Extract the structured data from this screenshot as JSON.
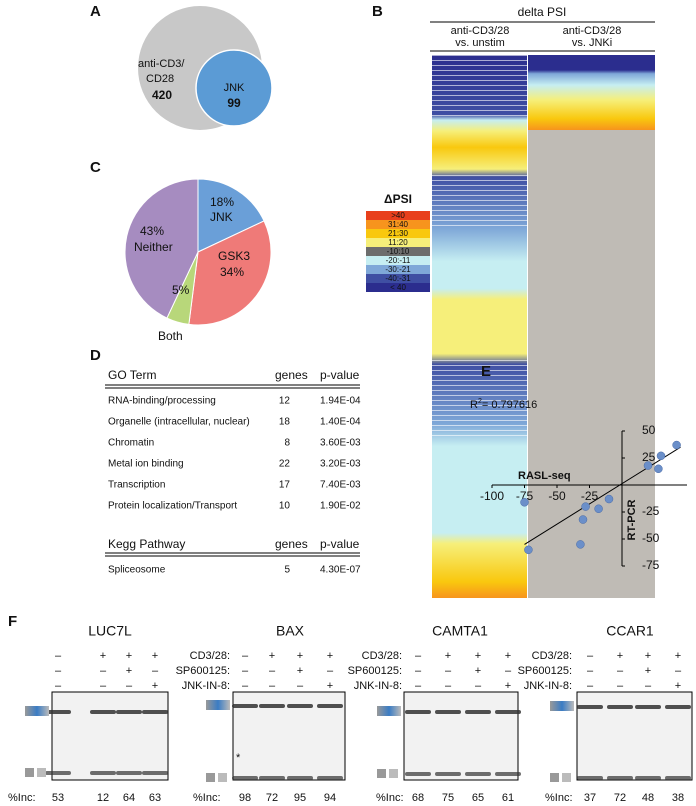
{
  "A": {
    "label": "A",
    "outer": [
      "anti-CD3/",
      "CD28"
    ],
    "outer_count": 420,
    "inner": "JNK",
    "inner_count": 99
  },
  "B": {
    "label": "B",
    "title": "delta PSI",
    "columns": [
      [
        "anti-CD3/28",
        "vs. unstim"
      ],
      [
        "anti-CD3/28",
        "vs. JNKi"
      ]
    ],
    "legend_title": "ΔPSI",
    "legend": [
      {
        "label": ">40",
        "color": "#e8401c"
      },
      {
        "label": "31:40",
        "color": "#f7941d"
      },
      {
        "label": "21:30",
        "color": "#f9c80e"
      },
      {
        "label": "11:20",
        "color": "#f6ef7a"
      },
      {
        "label": "-10:10",
        "color": "#6d6d6d"
      },
      {
        "label": "-20:-11",
        "color": "#c6eef2"
      },
      {
        "label": "-30:-21",
        "color": "#7fa8d8"
      },
      {
        "label": "-40:-31",
        "color": "#3f4fa3"
      },
      {
        "label": "< 40",
        "color": "#2b2d8e"
      }
    ]
  },
  "C": {
    "label": "C",
    "chart_data": {
      "type": "pie",
      "categories": [
        "JNK",
        "GSK3",
        "Both",
        "Neither"
      ],
      "values": [
        18,
        34,
        5,
        43
      ],
      "value_labels": [
        "18%",
        "34%",
        "5%",
        "43%"
      ],
      "colors": [
        "#6a9fd8",
        "#ef7a78",
        "#b8d77a",
        "#a68cc0"
      ]
    }
  },
  "D": {
    "label": "D",
    "go": {
      "header": [
        "GO Term",
        "genes",
        "p-value"
      ],
      "rows": [
        [
          "RNA-binding/processing",
          12,
          "1.94E-04"
        ],
        [
          "Organelle (intracellular, nuclear)",
          18,
          "1.40E-04"
        ],
        [
          "Chromatin",
          8,
          "3.60E-03"
        ],
        [
          "Metal ion binding",
          22,
          "3.20E-03"
        ],
        [
          "Transcription",
          17,
          "7.40E-03"
        ],
        [
          "Protein localization/Transport",
          10,
          "1.90E-02"
        ]
      ]
    },
    "kegg": {
      "header": [
        "Kegg Pathway",
        "genes",
        "p-value"
      ],
      "rows": [
        [
          "Spliceosome",
          5,
          "4.30E-07"
        ]
      ]
    }
  },
  "E": {
    "label": "E",
    "chart_data": {
      "type": "scatter",
      "annotation": [
        "R",
        "2",
        "= 0.797616"
      ],
      "xlabel": "RASL-seq",
      "ylabel": "RT-PCR",
      "x": [
        42,
        30,
        20,
        28,
        -18,
        -30,
        -28,
        -75,
        -72,
        -32,
        -10
      ],
      "y": [
        37,
        27,
        18,
        15,
        -22,
        -32,
        -20,
        -16,
        -60,
        -55,
        -13
      ],
      "color": "#6b8fc9",
      "xlim": [
        -100,
        50
      ],
      "ylim": [
        -75,
        50
      ],
      "xticks": [
        -100,
        -75,
        -50,
        -25
      ],
      "yticks": [
        -75,
        -50,
        -25,
        25,
        50
      ]
    }
  },
  "F": {
    "label": "F",
    "gels": [
      {
        "title": "LUC7L",
        "rows": [
          {
            "signs": [
              "–",
              "+",
              "+",
              "+"
            ]
          },
          {
            "signs": [
              "–",
              "–",
              "+",
              "–"
            ]
          },
          {
            "signs": [
              "–",
              "–",
              "–",
              "+"
            ]
          }
        ],
        "inc_label": "%Inc:",
        "inc": [
          53,
          12,
          64,
          63
        ]
      },
      {
        "title": "BAX",
        "rows": [
          {
            "label": "CD3/28:",
            "signs": [
              "–",
              "+",
              "+",
              "+"
            ]
          },
          {
            "label": "SP600125:",
            "signs": [
              "–",
              "–",
              "+",
              "–"
            ]
          },
          {
            "label": "JNK-IN-8:",
            "signs": [
              "–",
              "–",
              "–",
              "+"
            ]
          }
        ],
        "note": "*",
        "inc_label": "%Inc:",
        "inc": [
          98,
          72,
          95,
          94
        ]
      },
      {
        "title": "CAMTA1",
        "rows": [
          {
            "label": "CD3/28:",
            "signs": [
              "–",
              "+",
              "+",
              "+"
            ]
          },
          {
            "label": "SP600125:",
            "signs": [
              "–",
              "–",
              "+",
              "–"
            ]
          },
          {
            "label": "JNK-IN-8:",
            "signs": [
              "–",
              "–",
              "–",
              "+"
            ]
          }
        ],
        "inc_label": "%Inc:",
        "inc": [
          68,
          75,
          65,
          61
        ]
      },
      {
        "title": "CCAR1",
        "rows": [
          {
            "label": "CD3/28:",
            "signs": [
              "–",
              "+",
              "+",
              "+"
            ]
          },
          {
            "label": "SP600125:",
            "signs": [
              "–",
              "–",
              "+",
              "–"
            ]
          },
          {
            "label": "JNK-IN-8:",
            "signs": [
              "–",
              "–",
              "–",
              "+"
            ]
          }
        ],
        "inc_label": "%Inc:",
        "inc": [
          37,
          72,
          48,
          38
        ]
      }
    ]
  }
}
